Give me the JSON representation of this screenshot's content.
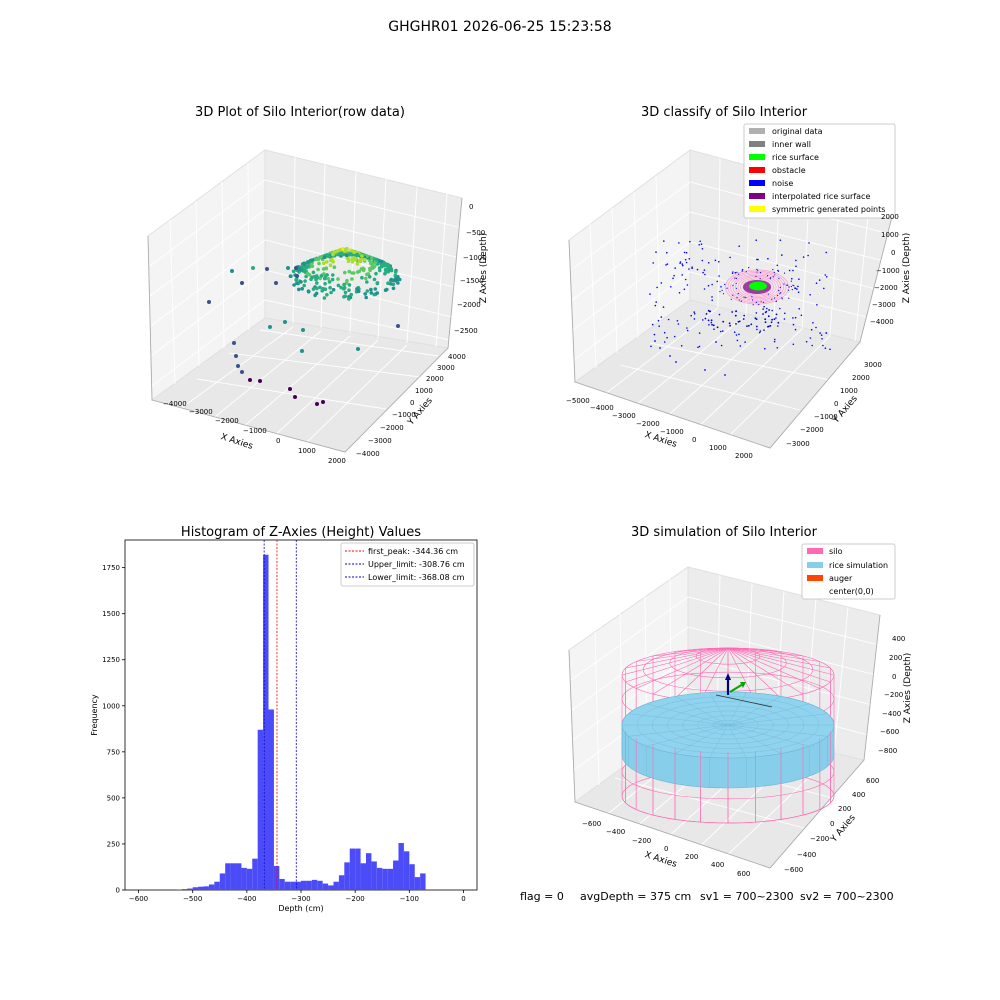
{
  "figure": {
    "title": "GHGHR01 2026-06-25 15:23:58"
  },
  "status": {
    "flag": "flag = 0",
    "avg_depth": "avgDepth = 375 cm",
    "sv1": "sv1 = 700~2300",
    "sv2": "sv2 = 700~2300"
  },
  "colors": {
    "histogram_bar": "#4b4bf8",
    "first_peak": "#ff0000",
    "limits": "#0000cc",
    "silo": "#ff69b4",
    "rice_simulation": "#87ceeb",
    "auger": "#ff4500"
  },
  "chart_data": [
    {
      "type": "scatter",
      "title": "3D Plot of Silo Interior(row data)",
      "xlabel": "X Axies",
      "ylabel": "Y Axies",
      "zlabel": "Z Axies (Depth)",
      "x_ticks": [
        "−4000",
        "−3000",
        "−2000",
        "−1000",
        "0",
        "1000",
        "2000"
      ],
      "y_ticks": [
        "−4000",
        "−3000",
        "−2000",
        "−1000",
        "0",
        "1000",
        "2000",
        "3000",
        "4000"
      ],
      "z_ticks": [
        "0",
        "−500",
        "−1000",
        "−1500",
        "−2000",
        "−2500"
      ],
      "xlim": [
        -4500,
        2000
      ],
      "ylim": [
        -4000,
        4000
      ],
      "zlim": [
        -2700,
        0
      ],
      "colormap": "viridis"
    },
    {
      "type": "scatter",
      "title": "3D classify of Silo Interior",
      "xlabel": "X Axies",
      "ylabel": "Y Axies",
      "zlabel": "Z Axies (Depth)",
      "x_ticks": [
        "−5000",
        "−4000",
        "−3000",
        "−2000",
        "−1000",
        "0",
        "1000",
        "2000"
      ],
      "y_ticks": [
        "−3000",
        "−2000",
        "−1000",
        "0",
        "1000",
        "2000",
        "3000"
      ],
      "z_ticks": [
        "2000",
        "1000",
        "0",
        "−1000",
        "−2000",
        "−3000",
        "−4000"
      ],
      "xlim": [
        -5000,
        2500
      ],
      "ylim": [
        -3500,
        3500
      ],
      "zlim": [
        -4500,
        2500
      ],
      "legend": [
        {
          "label": "original data",
          "color": "#b0b0b0"
        },
        {
          "label": "inner wall",
          "color": "#808080"
        },
        {
          "label": "rice surface",
          "color": "#00ff00"
        },
        {
          "label": "obstacle",
          "color": "#ff0000"
        },
        {
          "label": "noise",
          "color": "#0000ff"
        },
        {
          "label": "interpolated rice surface",
          "color": "#800080"
        },
        {
          "label": "symmetric generated points",
          "color": "#ffff00"
        }
      ],
      "legend_position": "top-right"
    },
    {
      "type": "bar",
      "title": "Histogram of Z-Axies (Height) Values",
      "xlabel": "Depth (cm)",
      "ylabel": "Frequency",
      "xlim": [
        -625,
        25
      ],
      "ylim": [
        0,
        1900
      ],
      "x_ticks": [
        -600,
        -500,
        -400,
        -300,
        -200,
        -100,
        0
      ],
      "y_ticks": [
        0,
        250,
        500,
        750,
        1000,
        1250,
        1500,
        1750
      ],
      "bin_width": 10,
      "bins": [
        {
          "x0": -530,
          "value": 2
        },
        {
          "x0": -520,
          "value": 5
        },
        {
          "x0": -510,
          "value": 8
        },
        {
          "x0": -500,
          "value": 15
        },
        {
          "x0": -490,
          "value": 18
        },
        {
          "x0": -480,
          "value": 20
        },
        {
          "x0": -470,
          "value": 30
        },
        {
          "x0": -460,
          "value": 45
        },
        {
          "x0": -450,
          "value": 90
        },
        {
          "x0": -440,
          "value": 145
        },
        {
          "x0": -430,
          "value": 145
        },
        {
          "x0": -420,
          "value": 145
        },
        {
          "x0": -410,
          "value": 120
        },
        {
          "x0": -400,
          "value": 115
        },
        {
          "x0": -390,
          "value": 170
        },
        {
          "x0": -380,
          "value": 870
        },
        {
          "x0": -370,
          "value": 1820
        },
        {
          "x0": -360,
          "value": 980
        },
        {
          "x0": -350,
          "value": 130
        },
        {
          "x0": -340,
          "value": 60
        },
        {
          "x0": -330,
          "value": 45
        },
        {
          "x0": -320,
          "value": 45
        },
        {
          "x0": -310,
          "value": 45
        },
        {
          "x0": -300,
          "value": 50
        },
        {
          "x0": -290,
          "value": 50
        },
        {
          "x0": -280,
          "value": 55
        },
        {
          "x0": -270,
          "value": 50
        },
        {
          "x0": -260,
          "value": 35
        },
        {
          "x0": -250,
          "value": 25
        },
        {
          "x0": -240,
          "value": 45
        },
        {
          "x0": -230,
          "value": 80
        },
        {
          "x0": -220,
          "value": 150
        },
        {
          "x0": -210,
          "value": 225
        },
        {
          "x0": -200,
          "value": 225
        },
        {
          "x0": -190,
          "value": 145
        },
        {
          "x0": -180,
          "value": 200
        },
        {
          "x0": -170,
          "value": 155
        },
        {
          "x0": -160,
          "value": 120
        },
        {
          "x0": -150,
          "value": 115
        },
        {
          "x0": -140,
          "value": 115
        },
        {
          "x0": -130,
          "value": 160
        },
        {
          "x0": -120,
          "value": 255
        },
        {
          "x0": -110,
          "value": 210
        },
        {
          "x0": -100,
          "value": 140
        },
        {
          "x0": -90,
          "value": 70
        },
        {
          "x0": -80,
          "value": 90
        }
      ],
      "vlines": [
        {
          "x": -344.36,
          "label": "first_peak: -344.36 cm",
          "color": "#ff0000"
        },
        {
          "x": -308.76,
          "label": "Upper_limit: -308.76 cm",
          "color": "#0000cc"
        },
        {
          "x": -368.08,
          "label": "Lower_limit: -368.08 cm",
          "color": "#0000cc"
        }
      ],
      "legend_position": "top-right"
    },
    {
      "type": "3d-surface",
      "title": "3D simulation of Silo Interior",
      "xlabel": "X Axies",
      "ylabel": "Y Axies",
      "zlabel": "Z Axies (Depth)",
      "x_ticks": [
        "−600",
        "−400",
        "−200",
        "0",
        "200",
        "400",
        "600"
      ],
      "y_ticks": [
        "−600",
        "−400",
        "−200",
        "0",
        "200",
        "400",
        "600"
      ],
      "z_ticks": [
        "400",
        "200",
        "0",
        "−200",
        "−400",
        "−600",
        "−800"
      ],
      "legend": [
        {
          "label": "silo",
          "color": "#ff69b4"
        },
        {
          "label": "rice simulation",
          "color": "#87ceeb"
        },
        {
          "label": "auger",
          "color": "#ff4500"
        },
        {
          "label": "center(0,0)",
          "color": ""
        }
      ],
      "legend_position": "top-right"
    }
  ]
}
